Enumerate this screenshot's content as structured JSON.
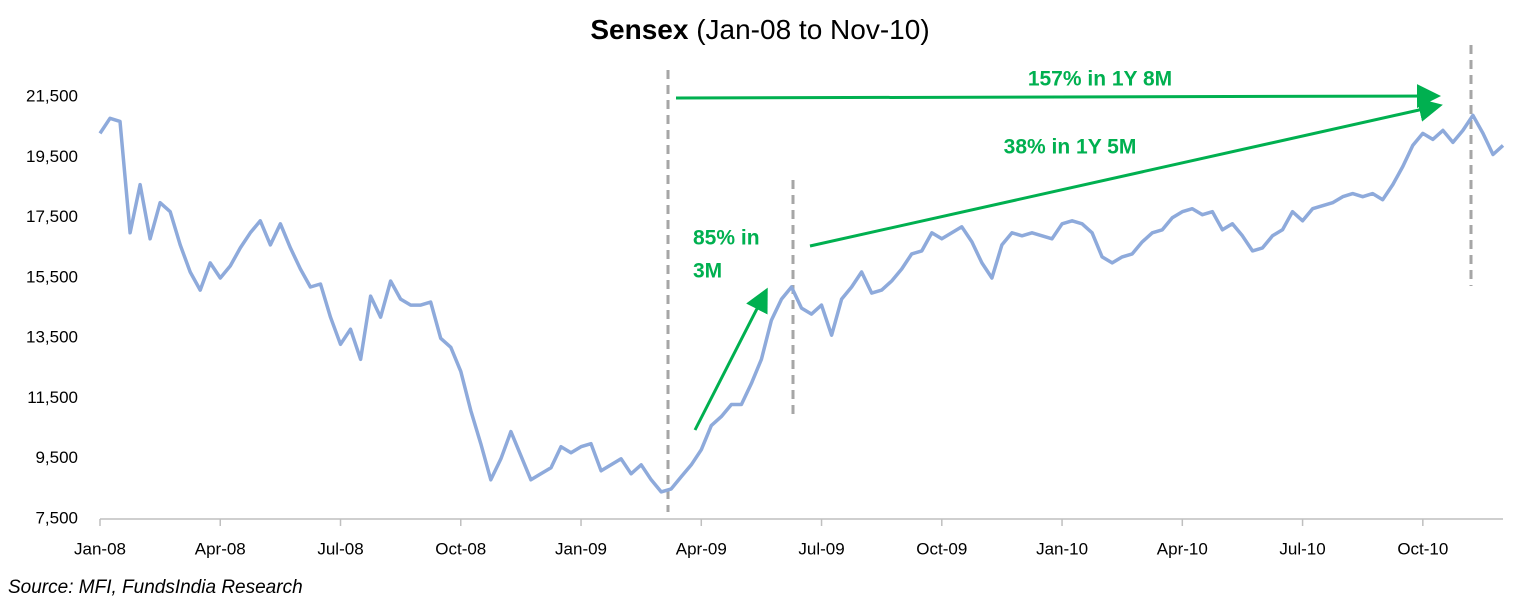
{
  "chart_data": {
    "type": "line",
    "title": "Sensex",
    "subtitle": "(Jan-08 to Nov-10)",
    "source": "Source: MFI, FundsIndia Research",
    "annotations": [
      "157% in 1Y 8M",
      "38% in 1Y 5M",
      "85% in",
      "3M"
    ],
    "color": "#8eaadb",
    "xlim": [
      0,
      35
    ],
    "ylim": [
      7500,
      23500
    ],
    "xticks": [
      {
        "value": 0,
        "label": "Jan-08"
      },
      {
        "value": 3,
        "label": "Apr-08"
      },
      {
        "value": 6,
        "label": "Jul-08"
      },
      {
        "value": 9,
        "label": "Oct-08"
      },
      {
        "value": 12,
        "label": "Jan-09"
      },
      {
        "value": 15,
        "label": "Apr-09"
      },
      {
        "value": 18,
        "label": "Jul-09"
      },
      {
        "value": 21,
        "label": "Oct-09"
      },
      {
        "value": 24,
        "label": "Jan-10"
      },
      {
        "value": 27,
        "label": "Apr-10"
      },
      {
        "value": 30,
        "label": "Jul-10"
      },
      {
        "value": 33,
        "label": "Oct-10"
      }
    ],
    "yticks": [
      {
        "value": 7500,
        "label": "7,500"
      },
      {
        "value": 9500,
        "label": "9,500"
      },
      {
        "value": 11500,
        "label": "11,500"
      },
      {
        "value": 13500,
        "label": "13,500"
      },
      {
        "value": 15500,
        "label": "15,500"
      },
      {
        "value": 17500,
        "label": "17,500"
      },
      {
        "value": 19500,
        "label": "19,500"
      },
      {
        "value": 21500,
        "label": "21,500"
      }
    ],
    "x": [
      0,
      0.25,
      0.5,
      0.75,
      1,
      1.25,
      1.5,
      1.75,
      2,
      2.25,
      2.5,
      2.75,
      3,
      3.25,
      3.5,
      3.75,
      4,
      4.25,
      4.5,
      4.75,
      5,
      5.25,
      5.5,
      5.75,
      6,
      6.25,
      6.5,
      6.75,
      7,
      7.25,
      7.5,
      7.75,
      8,
      8.25,
      8.5,
      8.75,
      9,
      9.25,
      9.5,
      9.75,
      10,
      10.25,
      10.5,
      10.75,
      11,
      11.25,
      11.5,
      11.75,
      12,
      12.25,
      12.5,
      12.75,
      13,
      13.25,
      13.5,
      13.75,
      14,
      14.25,
      14.5,
      14.75,
      15,
      15.25,
      15.5,
      15.75,
      16,
      16.25,
      16.5,
      16.75,
      17,
      17.25,
      17.5,
      17.75,
      18,
      18.25,
      18.5,
      18.75,
      19,
      19.25,
      19.5,
      19.75,
      20,
      20.25,
      20.5,
      20.75,
      21,
      21.25,
      21.5,
      21.75,
      22,
      22.25,
      22.5,
      22.75,
      23,
      23.25,
      23.5,
      23.75,
      24,
      24.25,
      24.5,
      24.75,
      25,
      25.25,
      25.5,
      25.75,
      26,
      26.25,
      26.5,
      26.75,
      27,
      27.25,
      27.5,
      27.75,
      28,
      28.25,
      28.5,
      28.75,
      29,
      29.25,
      29.5,
      29.75,
      30,
      30.25,
      30.5,
      30.75,
      31,
      31.25,
      31.5,
      31.75,
      32,
      32.25,
      32.5,
      32.75,
      33,
      33.25,
      33.5,
      33.75,
      34,
      34.25,
      34.5,
      34.75,
      35
    ],
    "values": [
      20300,
      20800,
      20700,
      17000,
      18600,
      16800,
      18000,
      17700,
      16600,
      15700,
      15100,
      16000,
      15500,
      15900,
      16500,
      17000,
      17400,
      16600,
      17300,
      16500,
      15800,
      15200,
      15300,
      14200,
      13300,
      13800,
      12800,
      14900,
      14200,
      15400,
      14800,
      14600,
      14600,
      14700,
      13500,
      13200,
      12400,
      11100,
      10000,
      8800,
      9500,
      10400,
      9600,
      8800,
      9000,
      9200,
      9900,
      9700,
      9900,
      10000,
      9100,
      9300,
      9500,
      9000,
      9300,
      8800,
      8400,
      8500,
      8900,
      9300,
      9800,
      10600,
      10900,
      11300,
      11300,
      12000,
      12800,
      14100,
      14800,
      15200,
      14500,
      14300,
      14600,
      13600,
      14800,
      15200,
      15700,
      15000,
      15100,
      15400,
      15800,
      16300,
      16400,
      17000,
      16800,
      17000,
      17200,
      16700,
      16000,
      15500,
      16600,
      17000,
      16900,
      17000,
      16900,
      16800,
      17300,
      17400,
      17300,
      17000,
      16200,
      16000,
      16200,
      16300,
      16700,
      17000,
      17100,
      17500,
      17700,
      17800,
      17600,
      17700,
      17100,
      17300,
      16900,
      16400,
      16500,
      16900,
      17100,
      17700,
      17400,
      17800,
      17900,
      18000,
      18200,
      18300,
      18200,
      18300,
      18100,
      18600,
      19200,
      19900,
      20300,
      20100,
      20400,
      20000,
      20400,
      20900,
      20300,
      19600,
      19900
    ]
  }
}
